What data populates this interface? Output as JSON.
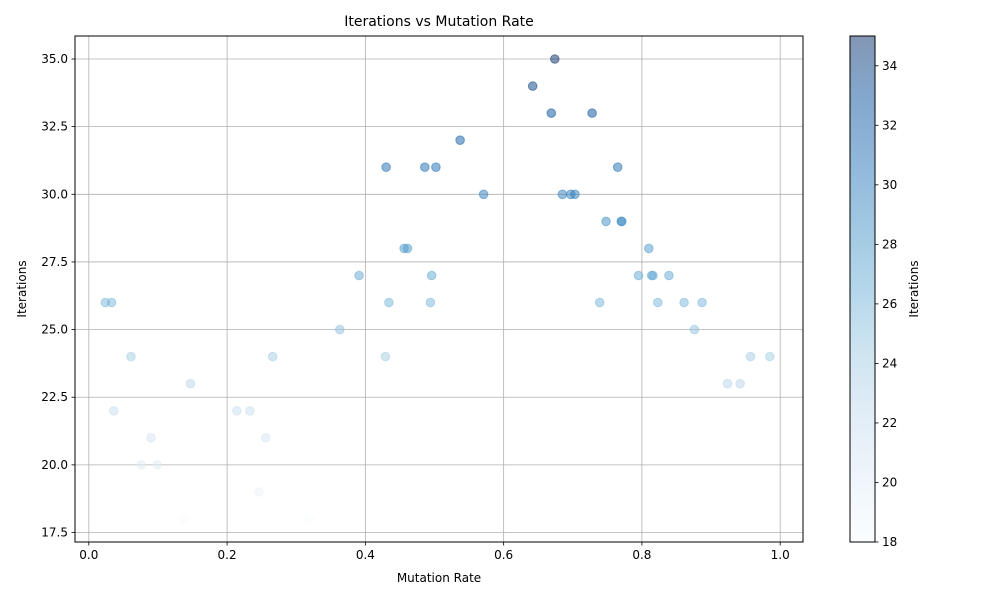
{
  "chart_data": {
    "type": "scatter",
    "title": "Iterations vs Mutation Rate",
    "xlabel": "Mutation Rate",
    "ylabel": "Iterations",
    "xlim": [
      -0.02,
      1.033
    ],
    "ylim": [
      17.15,
      35.85
    ],
    "xticks": [
      0.0,
      0.2,
      0.4,
      0.6,
      0.8,
      1.0
    ],
    "xtick_labels": [
      "0.0",
      "0.2",
      "0.4",
      "0.6",
      "0.8",
      "1.0"
    ],
    "yticks": [
      17.5,
      20.0,
      22.5,
      25.0,
      27.5,
      30.0,
      32.5,
      35.0
    ],
    "ytick_labels": [
      "17.5",
      "20.0",
      "22.5",
      "25.0",
      "27.5",
      "30.0",
      "32.5",
      "35.0"
    ],
    "grid": true,
    "colormap": "Blues",
    "alpha": 0.5,
    "points": [
      {
        "x": 0.024,
        "y": 26
      },
      {
        "x": 0.033,
        "y": 26
      },
      {
        "x": 0.036,
        "y": 22
      },
      {
        "x": 0.061,
        "y": 24
      },
      {
        "x": 0.076,
        "y": 20
      },
      {
        "x": 0.09,
        "y": 21
      },
      {
        "x": 0.099,
        "y": 20
      },
      {
        "x": 0.137,
        "y": 18
      },
      {
        "x": 0.147,
        "y": 23
      },
      {
        "x": 0.214,
        "y": 22
      },
      {
        "x": 0.233,
        "y": 22
      },
      {
        "x": 0.246,
        "y": 19
      },
      {
        "x": 0.256,
        "y": 21
      },
      {
        "x": 0.266,
        "y": 24
      },
      {
        "x": 0.319,
        "y": 18
      },
      {
        "x": 0.363,
        "y": 25
      },
      {
        "x": 0.391,
        "y": 27
      },
      {
        "x": 0.429,
        "y": 24
      },
      {
        "x": 0.43,
        "y": 31
      },
      {
        "x": 0.434,
        "y": 26
      },
      {
        "x": 0.456,
        "y": 28
      },
      {
        "x": 0.461,
        "y": 28
      },
      {
        "x": 0.486,
        "y": 31
      },
      {
        "x": 0.494,
        "y": 26
      },
      {
        "x": 0.496,
        "y": 27
      },
      {
        "x": 0.502,
        "y": 31
      },
      {
        "x": 0.537,
        "y": 32
      },
      {
        "x": 0.571,
        "y": 30
      },
      {
        "x": 0.642,
        "y": 34
      },
      {
        "x": 0.669,
        "y": 33
      },
      {
        "x": 0.674,
        "y": 35
      },
      {
        "x": 0.685,
        "y": 30
      },
      {
        "x": 0.697,
        "y": 30
      },
      {
        "x": 0.703,
        "y": 30
      },
      {
        "x": 0.728,
        "y": 33
      },
      {
        "x": 0.739,
        "y": 26
      },
      {
        "x": 0.748,
        "y": 29
      },
      {
        "x": 0.765,
        "y": 31
      },
      {
        "x": 0.77,
        "y": 29
      },
      {
        "x": 0.771,
        "y": 29
      },
      {
        "x": 0.795,
        "y": 27
      },
      {
        "x": 0.81,
        "y": 28
      },
      {
        "x": 0.814,
        "y": 27
      },
      {
        "x": 0.816,
        "y": 27
      },
      {
        "x": 0.823,
        "y": 26
      },
      {
        "x": 0.839,
        "y": 27
      },
      {
        "x": 0.861,
        "y": 26
      },
      {
        "x": 0.876,
        "y": 25
      },
      {
        "x": 0.887,
        "y": 26
      },
      {
        "x": 0.924,
        "y": 23
      },
      {
        "x": 0.942,
        "y": 23
      },
      {
        "x": 0.957,
        "y": 24
      },
      {
        "x": 0.985,
        "y": 24
      }
    ],
    "colorbar": {
      "label": "Iterations",
      "min": 18,
      "max": 35,
      "ticks": [
        18,
        20,
        22,
        24,
        26,
        28,
        30,
        32,
        34
      ],
      "tick_labels": [
        "18",
        "20",
        "22",
        "24",
        "26",
        "28",
        "30",
        "32",
        "34"
      ]
    }
  }
}
